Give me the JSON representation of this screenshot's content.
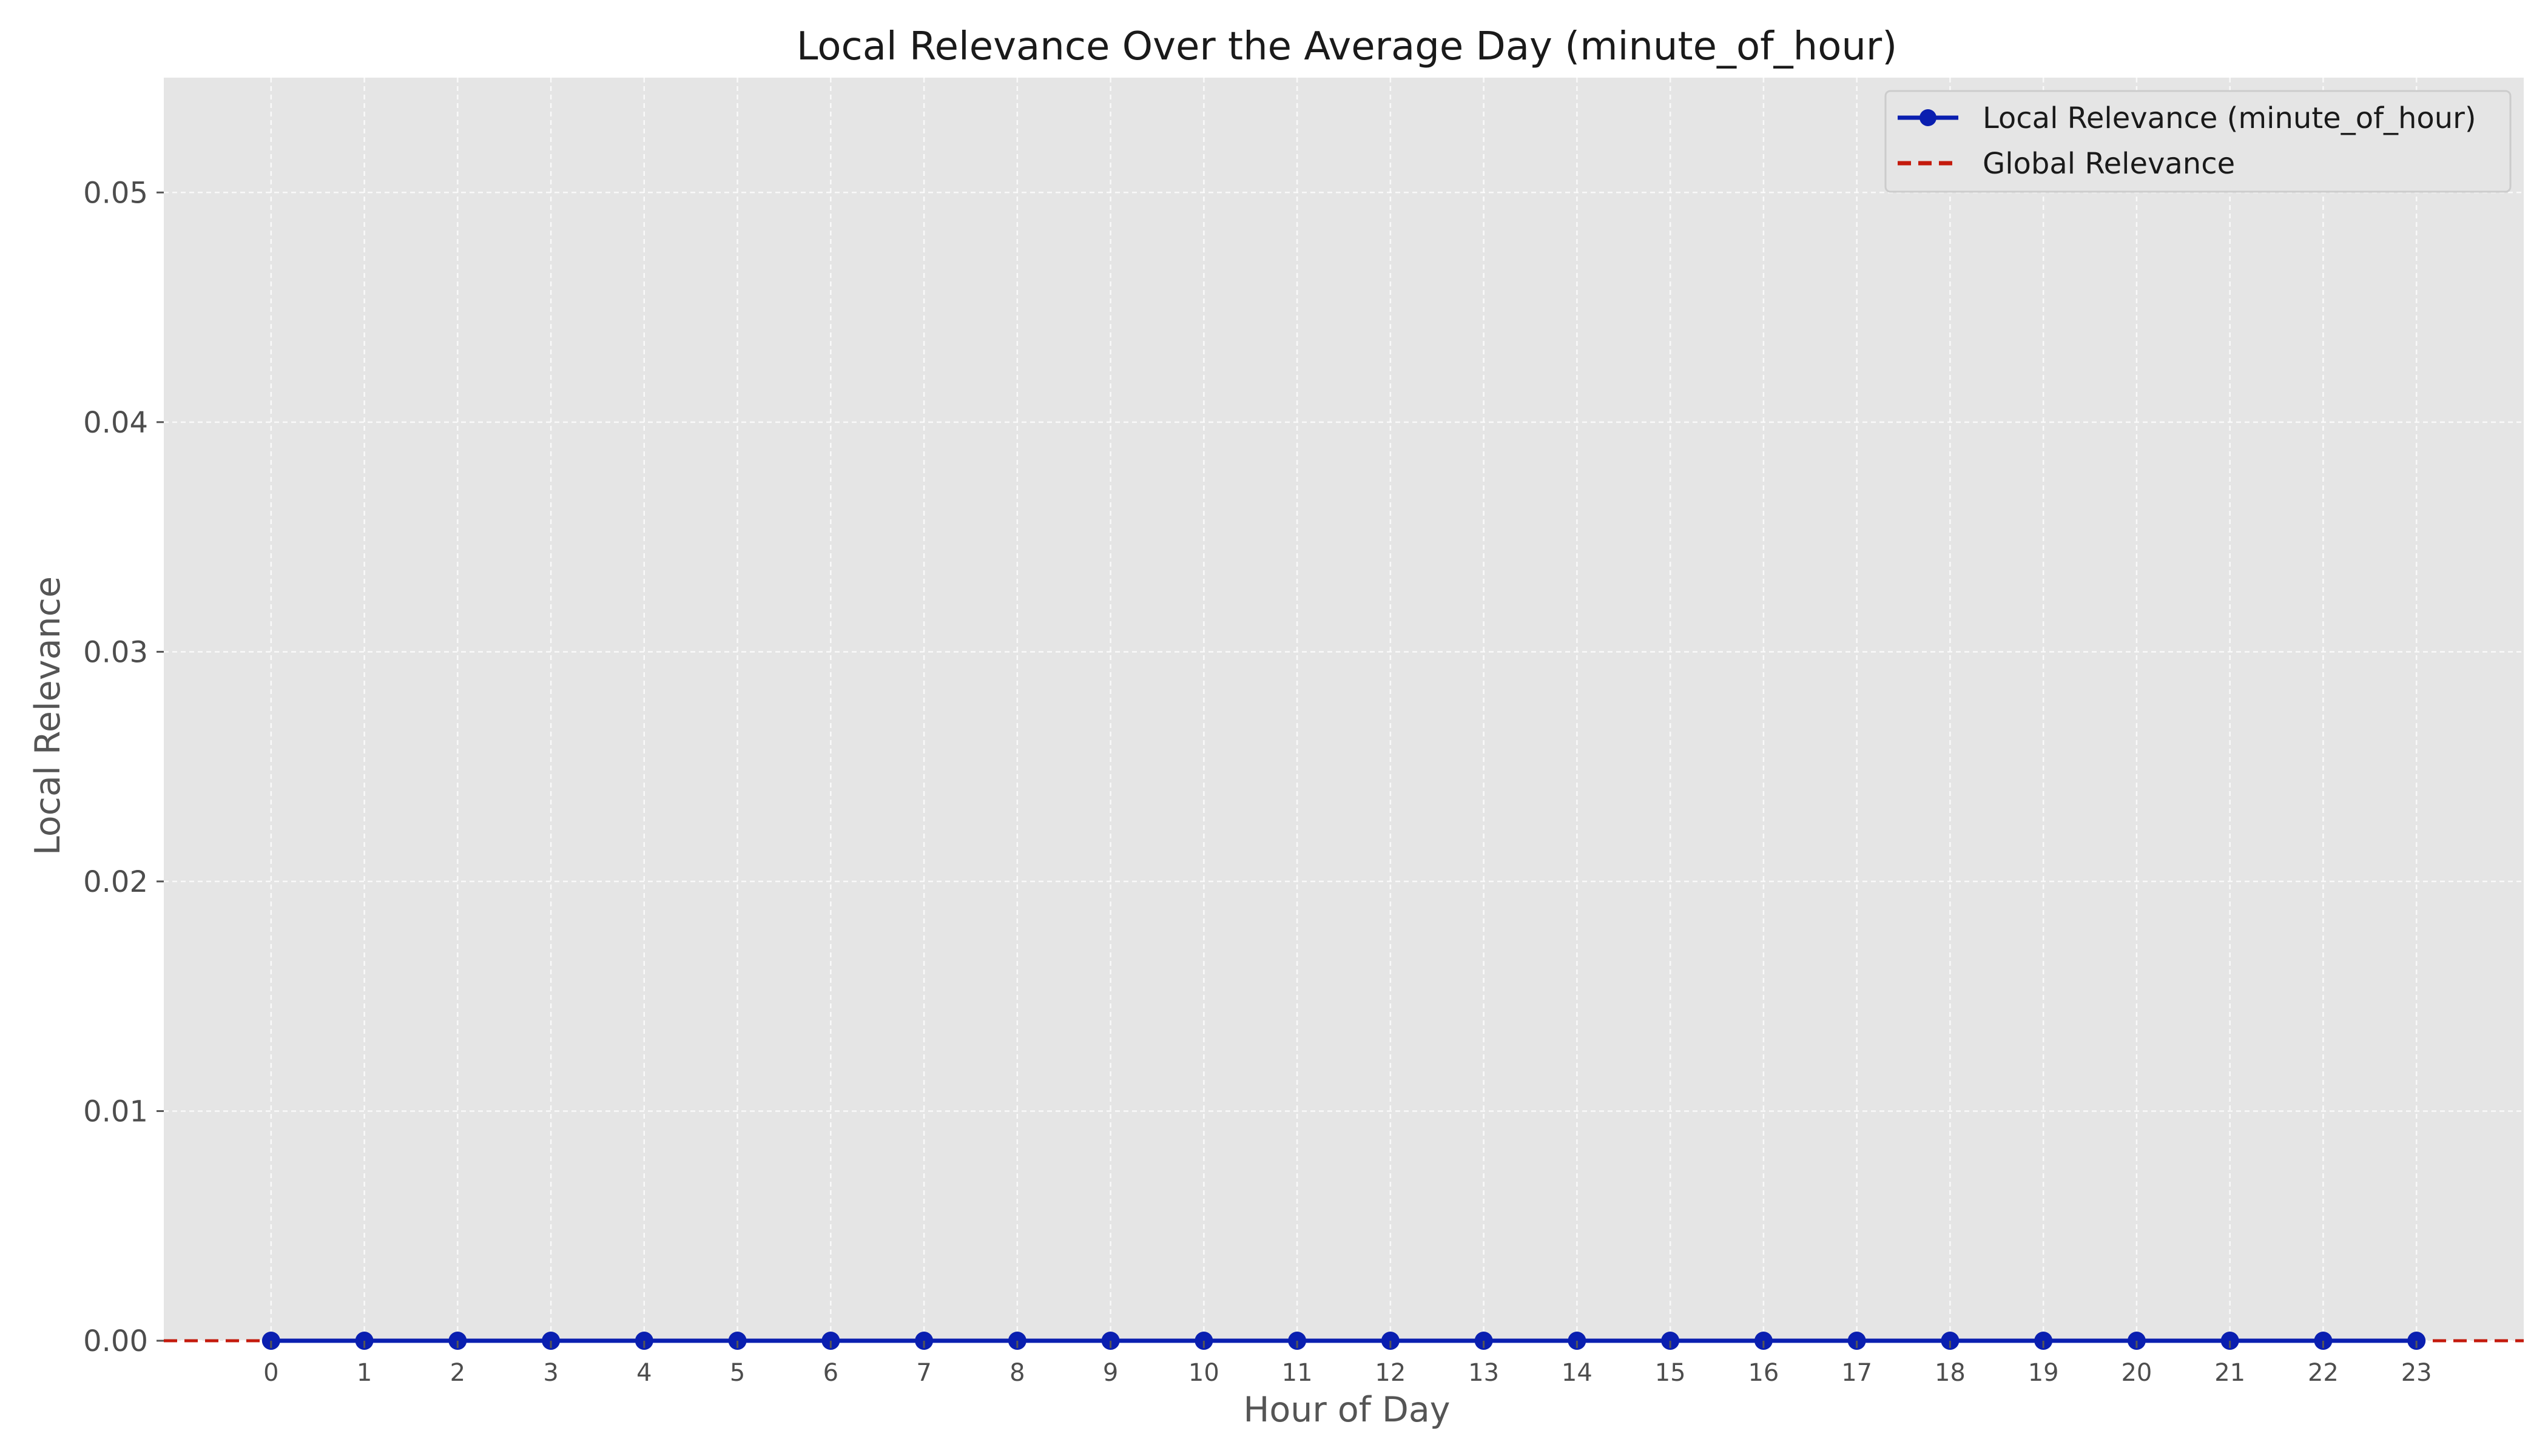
{
  "chart_data": {
    "type": "line",
    "title": "Local Relevance Over the Average Day (minute_of_hour)",
    "xlabel": "Hour of Day",
    "ylabel": "Local Relevance",
    "x": [
      0,
      1,
      2,
      3,
      4,
      5,
      6,
      7,
      8,
      9,
      10,
      11,
      12,
      13,
      14,
      15,
      16,
      17,
      18,
      19,
      20,
      21,
      22,
      23
    ],
    "xticks": [
      "0",
      "1",
      "2",
      "3",
      "4",
      "5",
      "6",
      "7",
      "8",
      "9",
      "10",
      "11",
      "12",
      "13",
      "14",
      "15",
      "16",
      "17",
      "18",
      "19",
      "20",
      "21",
      "22",
      "23"
    ],
    "xlim": [
      -1.15,
      24.15
    ],
    "ylim": [
      0,
      0.055
    ],
    "yticks": [
      "0.00",
      "0.01",
      "0.02",
      "0.03",
      "0.04",
      "0.05"
    ],
    "grid": true,
    "legend_position": "top-right",
    "series": [
      {
        "name": "Local Relevance (minute_of_hour)",
        "style": "solid-line-circle-markers",
        "color": "#0a1fb0",
        "values": [
          0,
          0,
          0,
          0,
          0,
          0,
          0,
          0,
          0,
          0,
          0,
          0,
          0,
          0,
          0,
          0,
          0,
          0,
          0,
          0,
          0,
          0,
          0,
          0
        ]
      },
      {
        "name": "Global Relevance",
        "style": "dashed-horizontal-line",
        "color": "#c41a0c",
        "value": 0
      }
    ],
    "plot_background": "#e5e5e5",
    "grid_color": "#ffffff"
  }
}
